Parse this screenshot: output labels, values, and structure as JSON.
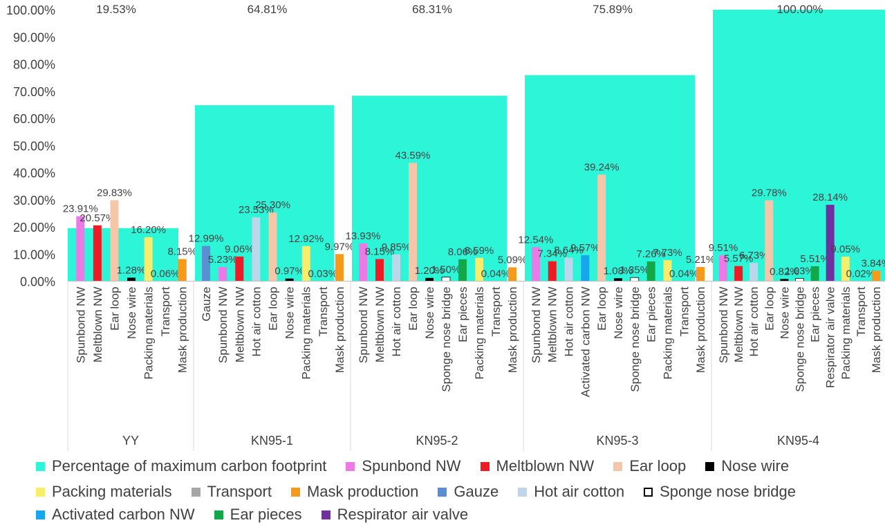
{
  "chart_data": {
    "type": "bar",
    "ylim": [
      0,
      100
    ],
    "yticks": [
      "0.00%",
      "10.00%",
      "20.00%",
      "30.00%",
      "40.00%",
      "50.00%",
      "60.00%",
      "70.00%",
      "80.00%",
      "90.00%",
      "100.00%"
    ],
    "value_suffix": "%",
    "background_series": {
      "name": "Percentage of maximum carbon footprint",
      "color": "#2cf5d8"
    },
    "groups": [
      {
        "name": "YY",
        "background": 19.53,
        "background_label": "19.53%",
        "bars": [
          {
            "label": "Spunbond NW",
            "value": 23.91,
            "value_label": "23.91%"
          },
          {
            "label": "Meltblown NW",
            "value": 20.57,
            "value_label": "20.57%"
          },
          {
            "label": "Ear loop",
            "value": 29.83,
            "value_label": "29.83%"
          },
          {
            "label": "Nose wire",
            "value": 1.28,
            "value_label": "1.28%"
          },
          {
            "label": "Packing materials",
            "value": 16.2,
            "value_label": "16.20%"
          },
          {
            "label": "Transport",
            "value": 0.06,
            "value_label": "0.06%"
          },
          {
            "label": "Mask production",
            "value": 8.15,
            "value_label": "8.15%"
          }
        ]
      },
      {
        "name": "KN95-1",
        "background": 64.81,
        "background_label": "64.81%",
        "bars": [
          {
            "label": "Gauze",
            "value": 12.99,
            "value_label": "12.99%"
          },
          {
            "label": "Spunbond NW",
            "value": 5.23,
            "value_label": "5.23%"
          },
          {
            "label": "Meltblown NW",
            "value": 9.06,
            "value_label": "9.06%"
          },
          {
            "label": "Hot air cotton",
            "value": 23.53,
            "value_label": "23.53%"
          },
          {
            "label": "Ear loop",
            "value": 25.3,
            "value_label": "25.30%"
          },
          {
            "label": "Nose wire",
            "value": 0.97,
            "value_label": "0.97%"
          },
          {
            "label": "Packing materials",
            "value": 12.92,
            "value_label": "12.92%"
          },
          {
            "label": "Transport",
            "value": 0.03,
            "value_label": "0.03%"
          },
          {
            "label": "Mask production",
            "value": 9.97,
            "value_label": "9.97%"
          }
        ]
      },
      {
        "name": "KN95-2",
        "background": 68.31,
        "background_label": "68.31%",
        "bars": [
          {
            "label": "Spunbond NW",
            "value": 13.93,
            "value_label": "13.93%"
          },
          {
            "label": "Meltblown NW",
            "value": 8.15,
            "value_label": "8.15%"
          },
          {
            "label": "Hot air cotton",
            "value": 9.85,
            "value_label": "9.85%"
          },
          {
            "label": "Ear loop",
            "value": 43.59,
            "value_label": "43.59%"
          },
          {
            "label": "Nose wire",
            "value": 1.2,
            "value_label": "1.20%"
          },
          {
            "label": "Sponge nose bridge",
            "value": 1.5,
            "value_label": "1.50%"
          },
          {
            "label": "Ear pieces",
            "value": 8.06,
            "value_label": "8.06%"
          },
          {
            "label": "Packing materials",
            "value": 8.59,
            "value_label": "8.59%"
          },
          {
            "label": "Transport",
            "value": 0.04,
            "value_label": "0.04%"
          },
          {
            "label": "Mask production",
            "value": 5.09,
            "value_label": "5.09%"
          }
        ]
      },
      {
        "name": "KN95-3",
        "background": 75.89,
        "background_label": "75.89%",
        "bars": [
          {
            "label": "Spunbond NW",
            "value": 12.54,
            "value_label": "12.54%"
          },
          {
            "label": "Meltblown NW",
            "value": 7.34,
            "value_label": "7.34%"
          },
          {
            "label": "Hot air cotton",
            "value": 8.64,
            "value_label": "8.64%"
          },
          {
            "label": "Activated carbon NW",
            "value": 9.57,
            "value_label": "9.57%"
          },
          {
            "label": "Ear loop",
            "value": 39.24,
            "value_label": "39.24%"
          },
          {
            "label": "Nose wire",
            "value": 1.08,
            "value_label": "1.08%"
          },
          {
            "label": "Sponge nose bridge",
            "value": 1.35,
            "value_label": "1.35%"
          },
          {
            "label": "Ear pieces",
            "value": 7.26,
            "value_label": "7.26%"
          },
          {
            "label": "Packing materials",
            "value": 7.73,
            "value_label": "7.73%"
          },
          {
            "label": "Transport",
            "value": 0.04,
            "value_label": "0.04%"
          },
          {
            "label": "Mask production",
            "value": 5.21,
            "value_label": "5.21%"
          }
        ]
      },
      {
        "name": "KN95-4",
        "background": 100.0,
        "background_label": "100.00%",
        "bars": [
          {
            "label": "Spunbond NW",
            "value": 9.51,
            "value_label": "9.51%"
          },
          {
            "label": "Meltblown NW",
            "value": 5.57,
            "value_label": "5.57%"
          },
          {
            "label": "Hot air cotton",
            "value": 6.73,
            "value_label": "6.73%"
          },
          {
            "label": "Ear loop",
            "value": 29.78,
            "value_label": "29.78%"
          },
          {
            "label": "Nose wire",
            "value": 0.82,
            "value_label": "0.82%"
          },
          {
            "label": "Sponge nose bridge",
            "value": 1.03,
            "value_label": "1.03%"
          },
          {
            "label": "Ear pieces",
            "value": 5.51,
            "value_label": "5.51%"
          },
          {
            "label": "Respirator air valve",
            "value": 28.14,
            "value_label": "28.14%"
          },
          {
            "label": "Packing materials",
            "value": 9.05,
            "value_label": "9.05%"
          },
          {
            "label": "Transport",
            "value": 0.02,
            "value_label": "0.02%"
          },
          {
            "label": "Mask production",
            "value": 3.84,
            "value_label": "3.84%"
          }
        ]
      }
    ],
    "series_colors": {
      "Spunbond NW": "#ec7ae6",
      "Meltblown NW": "#ee1b24",
      "Ear loop": "#f6c6a8",
      "Nose wire": "#000000",
      "Packing materials": "#f9ee6c",
      "Transport": "#a6a6a6",
      "Mask production": "#f59a1b",
      "Gauze": "#5b8fd3",
      "Hot air cotton": "#bcd7ec",
      "Sponge nose bridge": "#ffffff",
      "Activated carbon NW": "#17a6ee",
      "Ear pieces": "#12a84a",
      "Respirator air valve": "#7030a0"
    },
    "legend": [
      [
        {
          "label": "Percentage of maximum carbon footprint",
          "color": "#2cf5d8"
        },
        {
          "label": "Spunbond NW",
          "color": "#ec7ae6"
        },
        {
          "label": "Meltblown NW",
          "color": "#ee1b24"
        },
        {
          "label": "Ear loop",
          "color": "#f6c6a8"
        },
        {
          "label": "Nose wire",
          "color": "#000000"
        }
      ],
      [
        {
          "label": "Packing materials",
          "color": "#f9ee6c"
        },
        {
          "label": "Transport",
          "color": "#a6a6a6"
        },
        {
          "label": "Mask production",
          "color": "#f59a1b"
        },
        {
          "label": "Gauze",
          "color": "#5b8fd3"
        },
        {
          "label": "Hot air cotton",
          "color": "#bcd7ec"
        },
        {
          "label": "Sponge nose bridge",
          "color": "#ffffff",
          "outlined": true
        }
      ],
      [
        {
          "label": "Activated carbon NW",
          "color": "#17a6ee"
        },
        {
          "label": "Ear pieces",
          "color": "#12a84a"
        },
        {
          "label": "Respirator air valve",
          "color": "#7030a0"
        }
      ]
    ]
  }
}
